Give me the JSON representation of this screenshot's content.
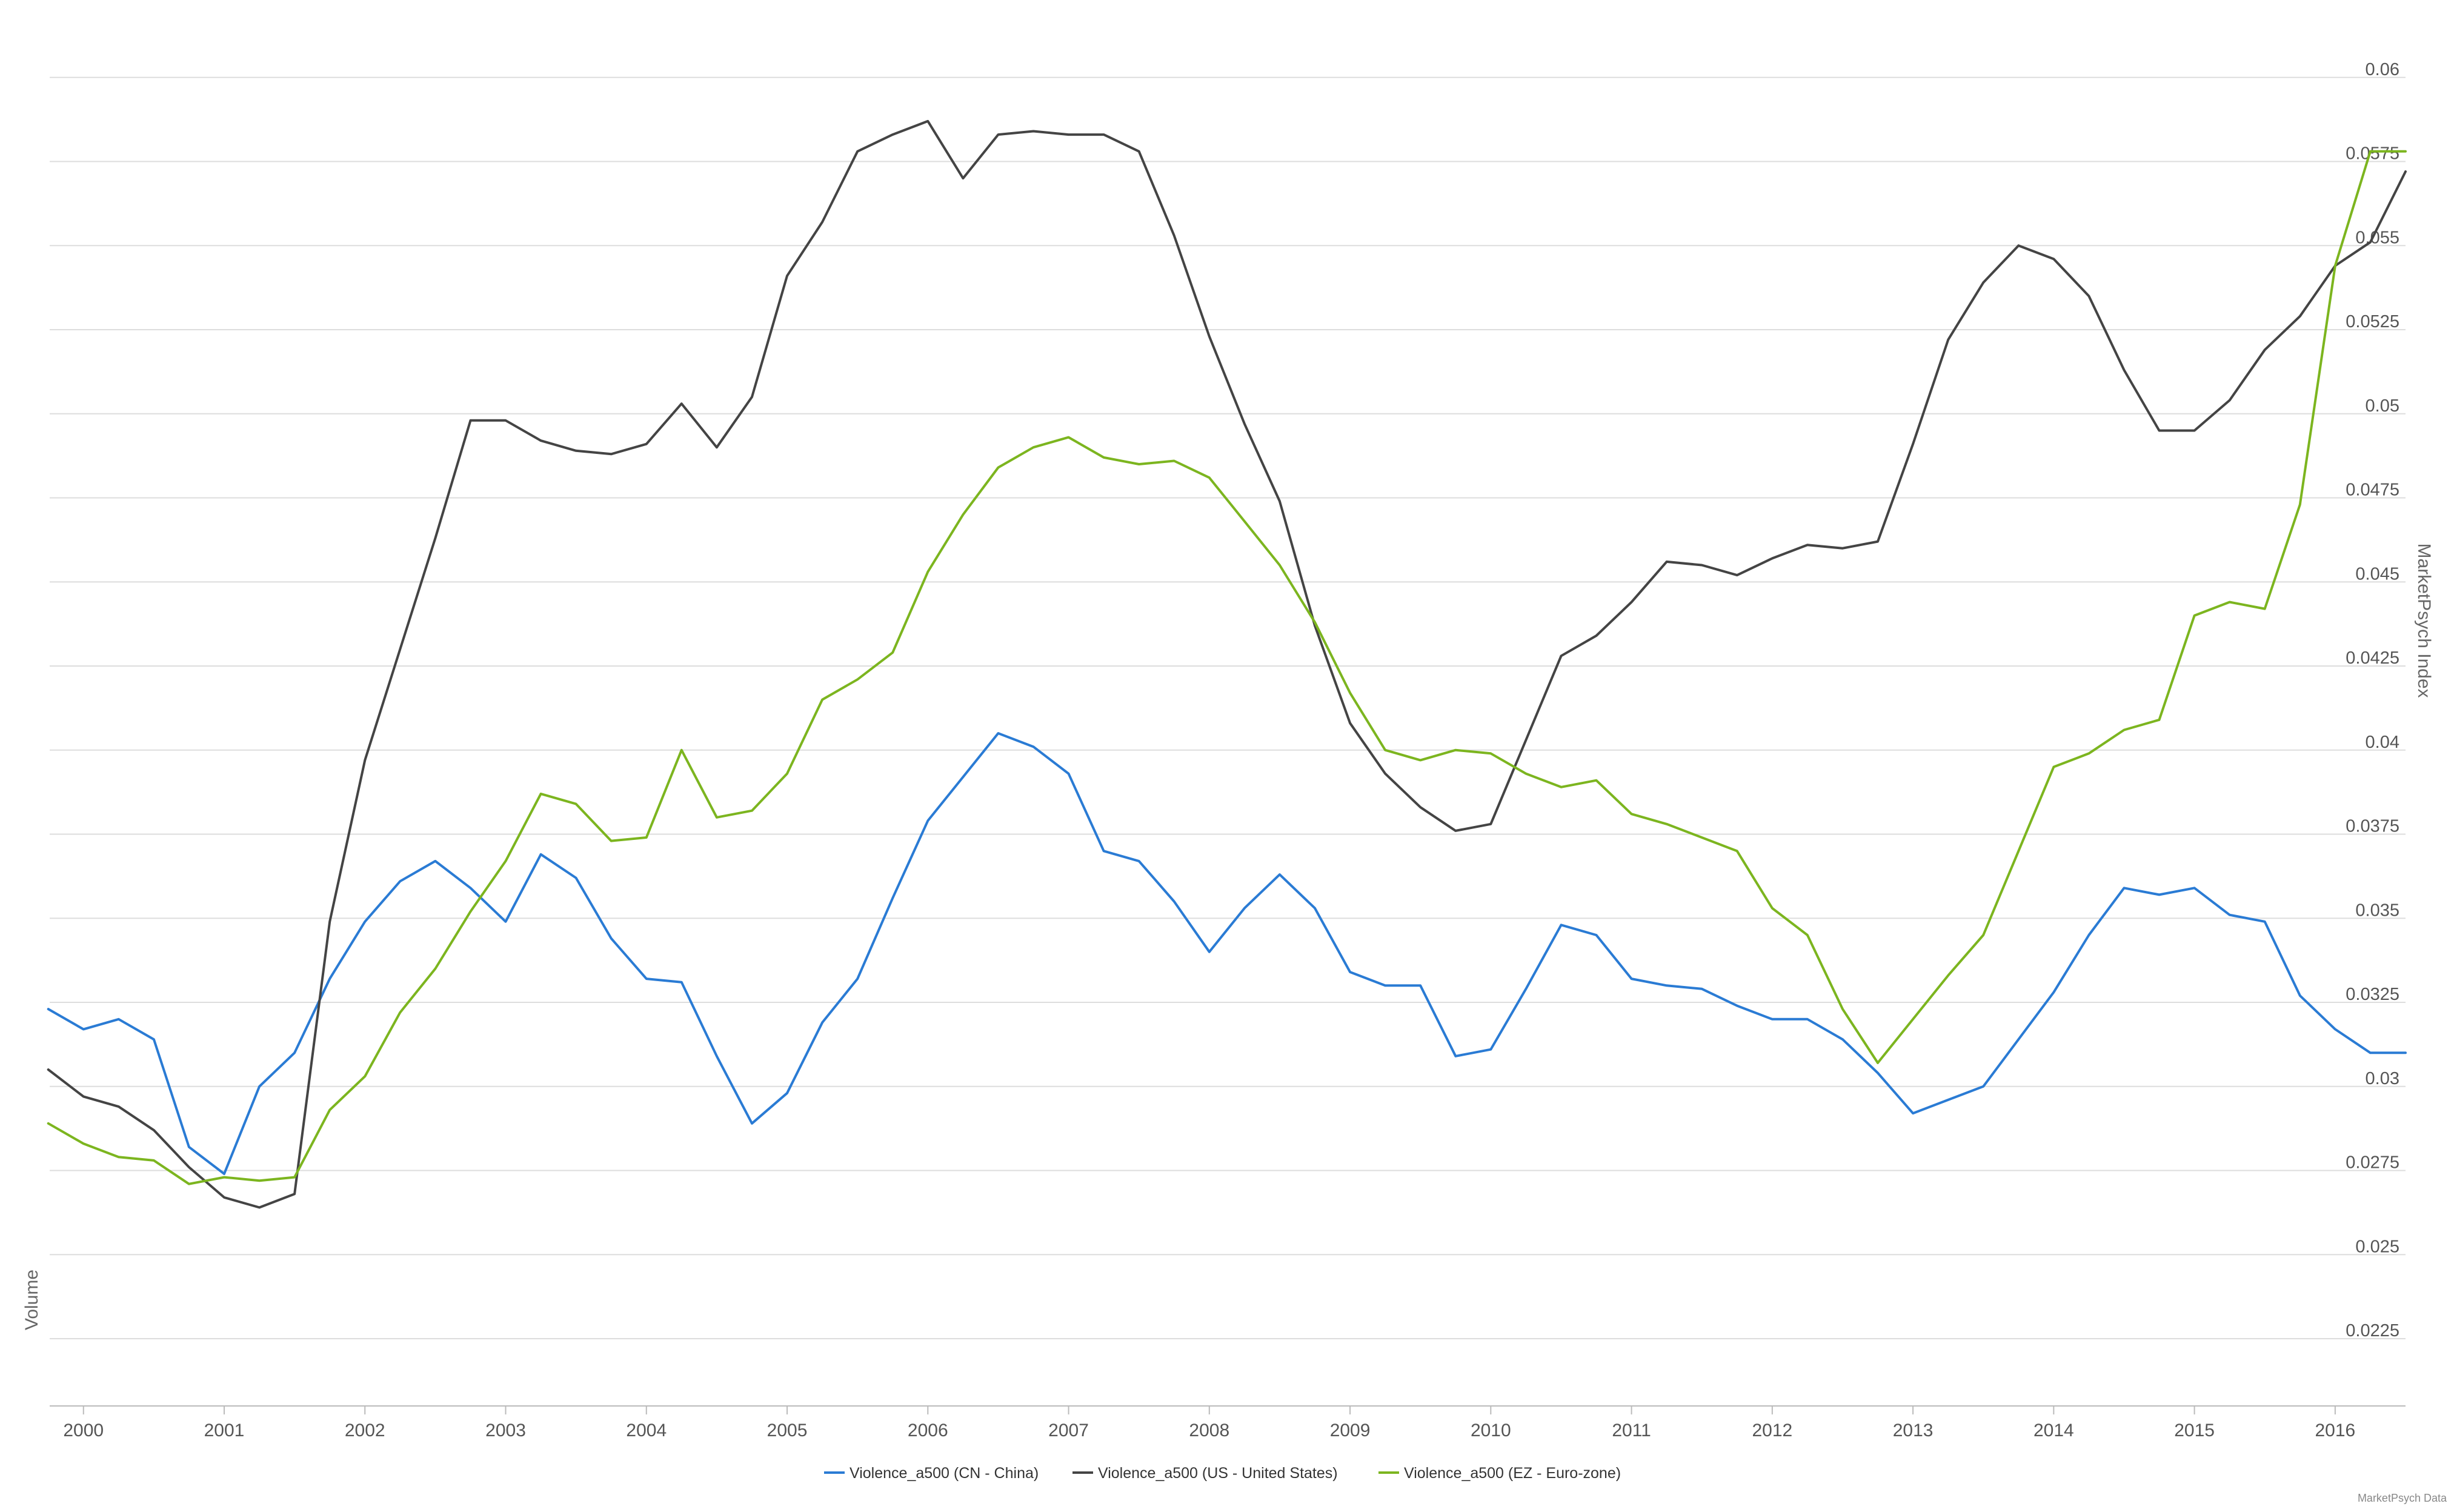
{
  "credit": "MarketPsych Data",
  "chart_data": {
    "type": "line",
    "ylabel_right": "MarketPsych Index",
    "ylabel_left": "Volume",
    "ylim": [
      0.0205,
      0.0605
    ],
    "y_ticks": [
      "0.06",
      "0.0575",
      "0.055",
      "0.0525",
      "0.05",
      "0.0475",
      "0.045",
      "0.0425",
      "0.04",
      "0.0375",
      "0.035",
      "0.0325",
      "0.03",
      "0.0275",
      "0.025",
      "0.0225"
    ],
    "y_tick_values": [
      0.06,
      0.0575,
      0.055,
      0.0525,
      0.05,
      0.0475,
      0.045,
      0.0425,
      0.04,
      0.0375,
      0.035,
      0.0325,
      0.03,
      0.0275,
      0.025,
      0.0225
    ],
    "xlim": [
      1999.76,
      2016.5
    ],
    "x_ticks": [
      "2000",
      "2001",
      "2002",
      "2003",
      "2004",
      "2005",
      "2006",
      "2007",
      "2008",
      "2009",
      "2010",
      "2011",
      "2012",
      "2013",
      "2014",
      "2015",
      "2016"
    ],
    "x_tick_values": [
      2000,
      2001,
      2002,
      2003,
      2004,
      2005,
      2006,
      2007,
      2008,
      2009,
      2010,
      2011,
      2012,
      2013,
      2014,
      2015,
      2016
    ],
    "grid": "horizontal",
    "legend_position": "bottom-center",
    "x": [
      1999.75,
      2000.0,
      2000.25,
      2000.5,
      2000.75,
      2001.0,
      2001.25,
      2001.5,
      2001.75,
      2002.0,
      2002.25,
      2002.5,
      2002.75,
      2003.0,
      2003.25,
      2003.5,
      2003.75,
      2004.0,
      2004.25,
      2004.5,
      2004.75,
      2005.0,
      2005.25,
      2005.5,
      2005.75,
      2006.0,
      2006.25,
      2006.5,
      2006.75,
      2007.0,
      2007.25,
      2007.5,
      2007.75,
      2008.0,
      2008.25,
      2008.5,
      2008.75,
      2009.0,
      2009.25,
      2009.5,
      2009.75,
      2010.0,
      2010.25,
      2010.5,
      2010.75,
      2011.0,
      2011.25,
      2011.5,
      2011.75,
      2012.0,
      2012.25,
      2012.5,
      2012.75,
      2013.0,
      2013.25,
      2013.5,
      2013.75,
      2014.0,
      2014.25,
      2014.5,
      2014.75,
      2015.0,
      2015.25,
      2015.5,
      2015.75,
      2016.0,
      2016.25,
      2016.5
    ],
    "series": [
      {
        "name": "Violence_a500 (CN - China)",
        "color": "#2a7bd4",
        "values": [
          0.0323,
          0.0317,
          0.032,
          0.0314,
          0.0282,
          0.0274,
          0.03,
          0.031,
          0.0332,
          0.0349,
          0.0361,
          0.0367,
          0.0359,
          0.0349,
          0.0369,
          0.0362,
          0.0344,
          0.0332,
          0.0331,
          0.0309,
          0.0289,
          0.0298,
          0.0319,
          0.0332,
          0.0356,
          0.0379,
          0.0392,
          0.0405,
          0.0401,
          0.0393,
          0.037,
          0.0367,
          0.0355,
          0.034,
          0.0353,
          0.0363,
          0.0353,
          0.0334,
          0.033,
          0.033,
          0.0309,
          0.0311,
          0.0329,
          0.0348,
          0.0345,
          0.0332,
          0.033,
          0.0329,
          0.0324,
          0.032,
          0.032,
          0.0314,
          0.0304,
          0.0292,
          0.0296,
          0.03,
          0.0314,
          0.0328,
          0.0345,
          0.0359,
          0.0357,
          0.0359,
          0.0351,
          0.0349,
          0.0327,
          0.0317,
          0.031,
          0.031
        ]
      },
      {
        "name": "Violence_a500 (US - United States)",
        "color": "#444444",
        "values": [
          0.0305,
          0.0297,
          0.0294,
          0.0287,
          0.0276,
          0.0267,
          0.0264,
          0.0268,
          0.0349,
          0.0397,
          0.043,
          0.0463,
          0.0498,
          0.0498,
          0.0492,
          0.0489,
          0.0488,
          0.0491,
          0.0503,
          0.049,
          0.0505,
          0.0541,
          0.0557,
          0.0578,
          0.0583,
          0.0587,
          0.057,
          0.0583,
          0.0584,
          0.0583,
          0.0583,
          0.0578,
          0.0553,
          0.0523,
          0.0497,
          0.0474,
          0.0437,
          0.0408,
          0.0393,
          0.0383,
          0.0376,
          0.0378,
          0.0403,
          0.0428,
          0.0434,
          0.0444,
          0.0456,
          0.0455,
          0.0452,
          0.0457,
          0.0461,
          0.046,
          0.0462,
          0.0491,
          0.0522,
          0.0539,
          0.055,
          0.0546,
          0.0535,
          0.0513,
          0.0495,
          0.0495,
          0.0504,
          0.0519,
          0.0529,
          0.0544,
          0.0551,
          0.0572
        ]
      },
      {
        "name": "Violence_a500 (EZ - Euro-zone)",
        "color": "#7cb51f",
        "values": [
          0.0289,
          0.0283,
          0.0279,
          0.0278,
          0.0271,
          0.0273,
          0.0272,
          0.0273,
          0.0293,
          0.0303,
          0.0322,
          0.0335,
          0.0352,
          0.0367,
          0.0387,
          0.0384,
          0.0373,
          0.0374,
          0.04,
          0.038,
          0.0382,
          0.0393,
          0.0415,
          0.0421,
          0.0429,
          0.0453,
          0.047,
          0.0484,
          0.049,
          0.0493,
          0.0487,
          0.0485,
          0.0486,
          0.0481,
          0.0468,
          0.0455,
          0.0438,
          0.0417,
          0.04,
          0.0397,
          0.04,
          0.0399,
          0.0393,
          0.0389,
          0.0391,
          0.0381,
          0.0378,
          0.0374,
          0.037,
          0.0353,
          0.0345,
          0.0323,
          0.0307,
          0.032,
          0.0333,
          0.0345,
          0.037,
          0.0395,
          0.0399,
          0.0406,
          0.0409,
          0.044,
          0.0444,
          0.0442,
          0.0473,
          0.0544,
          0.0578,
          0.0578
        ]
      }
    ]
  }
}
